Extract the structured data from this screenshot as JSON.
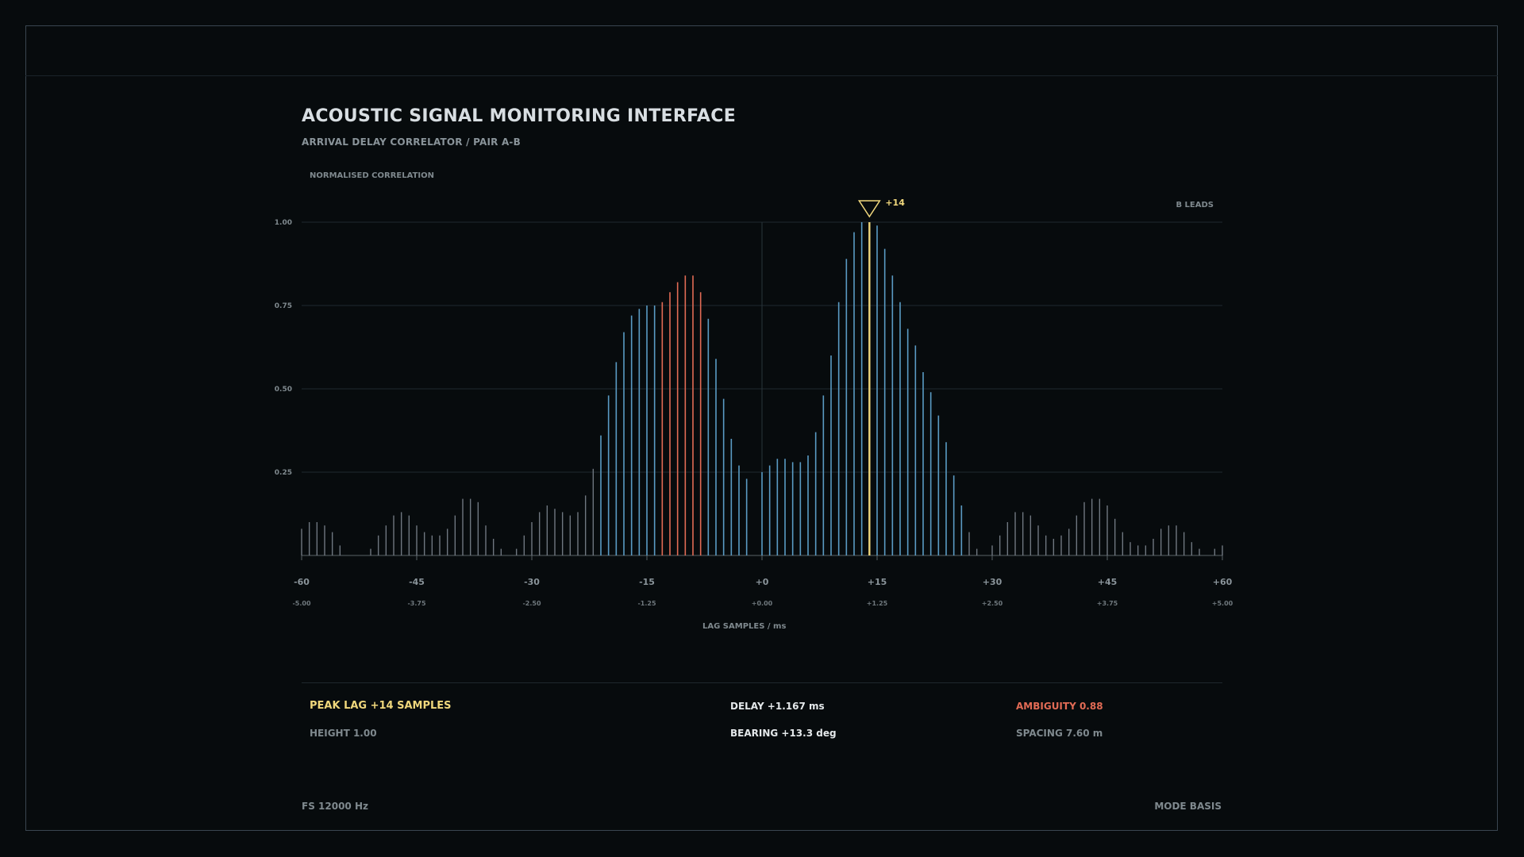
{
  "header": {
    "title": "ACOUSTIC SIGNAL MONITORING INTERFACE",
    "subtitle": "ARRIVAL DELAY CORRELATOR / PAIR A-B"
  },
  "colors": {
    "background": "#070b0d",
    "bar_normal": "#5a9bc4",
    "bar_low": "#6f7780",
    "bar_highlight": "#e26b55",
    "bar_peak": "#f0d77c"
  },
  "chart_data": {
    "type": "bar",
    "ylabel": "NORMALISED CORRELATION",
    "xlabel": "LAG SAMPLES / ms",
    "corner_label": "B LEADS",
    "ylim": [
      0,
      1
    ],
    "xlim": [
      -60,
      60
    ],
    "y_ticks": [
      "1.00",
      "0.75",
      "0.50",
      "0.25"
    ],
    "y_tick_values": [
      1.0,
      0.75,
      0.5,
      0.25
    ],
    "x_ticks": [
      "-60",
      "-45",
      "-30",
      "-15",
      "+0",
      "+15",
      "+30",
      "+45",
      "+60"
    ],
    "x_tick_values": [
      -60,
      -45,
      -30,
      -15,
      0,
      15,
      30,
      45,
      60
    ],
    "x_ms_ticks": [
      "-5.00",
      "-3.75",
      "-2.50",
      "-1.25",
      "+0.00",
      "+1.25",
      "+2.50",
      "+3.75",
      "+5.00"
    ],
    "peak": {
      "lag": 14,
      "label": "+14"
    },
    "highlight_range": [
      -13,
      -8
    ],
    "normal_range": [
      -21,
      26
    ],
    "grid": true,
    "x": [
      -60,
      -59,
      -58,
      -57,
      -56,
      -55,
      -54,
      -53,
      -52,
      -51,
      -50,
      -49,
      -48,
      -47,
      -46,
      -45,
      -44,
      -43,
      -42,
      -41,
      -40,
      -39,
      -38,
      -37,
      -36,
      -35,
      -34,
      -33,
      -32,
      -31,
      -30,
      -29,
      -28,
      -27,
      -26,
      -25,
      -24,
      -23,
      -22,
      -21,
      -20,
      -19,
      -18,
      -17,
      -16,
      -15,
      -14,
      -13,
      -12,
      -11,
      -10,
      -9,
      -8,
      -7,
      -6,
      -5,
      -4,
      -3,
      -2,
      -1,
      0,
      1,
      2,
      3,
      4,
      5,
      6,
      7,
      8,
      9,
      10,
      11,
      12,
      13,
      14,
      15,
      16,
      17,
      18,
      19,
      20,
      21,
      22,
      23,
      24,
      25,
      26,
      27,
      28,
      29,
      30,
      31,
      32,
      33,
      34,
      35,
      36,
      37,
      38,
      39,
      40,
      41,
      42,
      43,
      44,
      45,
      46,
      47,
      48,
      49,
      50,
      51,
      52,
      53,
      54,
      55,
      56,
      57,
      58,
      59,
      60
    ],
    "values": [
      0.08,
      0.1,
      0.1,
      0.09,
      0.07,
      0.03,
      0.0,
      0.0,
      0.0,
      0.02,
      0.06,
      0.09,
      0.12,
      0.13,
      0.12,
      0.09,
      0.07,
      0.06,
      0.06,
      0.08,
      0.12,
      0.17,
      0.17,
      0.16,
      0.09,
      0.05,
      0.02,
      0.0,
      0.02,
      0.06,
      0.1,
      0.13,
      0.15,
      0.14,
      0.13,
      0.12,
      0.13,
      0.18,
      0.26,
      0.36,
      0.48,
      0.58,
      0.67,
      0.72,
      0.74,
      0.75,
      0.75,
      0.76,
      0.79,
      0.82,
      0.84,
      0.84,
      0.79,
      0.71,
      0.59,
      0.47,
      0.35,
      0.27,
      0.23,
      0.0,
      0.25,
      0.27,
      0.29,
      0.29,
      0.28,
      0.28,
      0.3,
      0.37,
      0.48,
      0.6,
      0.76,
      0.89,
      0.97,
      1.0,
      1.0,
      0.99,
      0.92,
      0.84,
      0.76,
      0.68,
      0.63,
      0.55,
      0.49,
      0.42,
      0.34,
      0.24,
      0.15,
      0.07,
      0.02,
      0.0,
      0.03,
      0.06,
      0.1,
      0.13,
      0.13,
      0.12,
      0.09,
      0.06,
      0.05,
      0.06,
      0.08,
      0.12,
      0.16,
      0.17,
      0.17,
      0.15,
      0.11,
      0.07,
      0.04,
      0.03,
      0.03,
      0.05,
      0.08,
      0.09,
      0.09,
      0.07,
      0.04,
      0.02,
      0.0,
      0.02,
      0.03
    ]
  },
  "readouts": {
    "peak_lag": "PEAK LAG  +14 SAMPLES",
    "height": "HEIGHT 1.00",
    "delay": "DELAY +1.167 ms",
    "bearing": "BEARING  +13.3 deg",
    "ambiguity": "AMBIGUITY 0.88",
    "spacing": "SPACING 7.60 m"
  },
  "footer": {
    "sample_rate": "FS 12000 Hz",
    "mode": "MODE BASIS"
  }
}
